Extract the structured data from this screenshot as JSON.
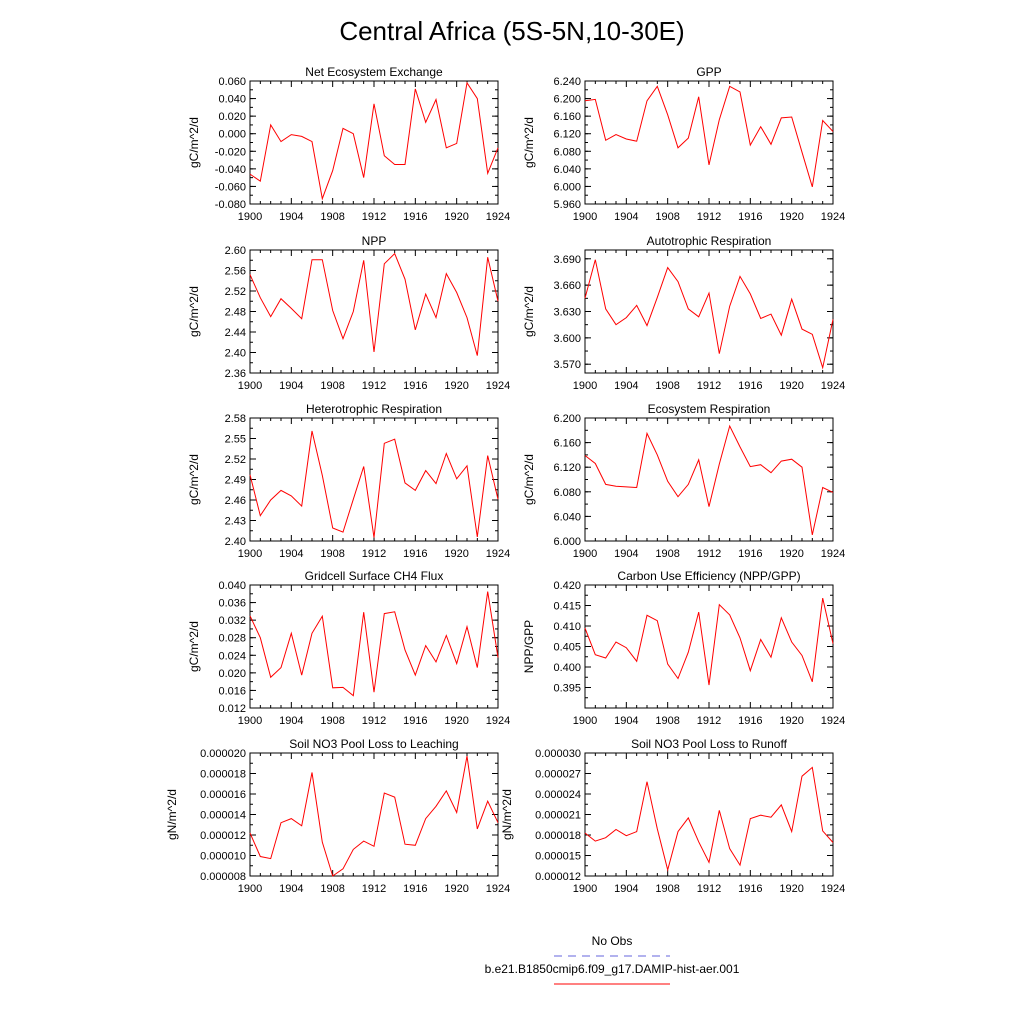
{
  "figure": {
    "title": "Central Africa (5S-5N,10-30E)"
  },
  "legend": [
    {
      "label": "No Obs",
      "color": "#6666dd",
      "style": "dashed"
    },
    {
      "label": "b.e21.B1850cmip6.f09_g17.DAMIP-hist-aer.001",
      "color": "#ff0000",
      "style": "solid"
    }
  ],
  "chart_data": [
    {
      "type": "line",
      "title": "Net Ecosystem Exchange",
      "ylabel": "gC/m^2/d",
      "xlim": [
        1900,
        1924
      ],
      "ylim": [
        -0.08,
        0.06
      ],
      "xticks": [
        "1900",
        "1904",
        "1908",
        "1912",
        "1916",
        "1920",
        "1924"
      ],
      "yticks": [
        "-0.080",
        "-0.060",
        "-0.040",
        "-0.020",
        "0.000",
        "0.020",
        "0.040",
        "0.060"
      ],
      "series": [
        {
          "color": "#ff0000",
          "x": [
            1900,
            1901,
            1902,
            1903,
            1904,
            1905,
            1906,
            1907,
            1908,
            1909,
            1910,
            1911,
            1912,
            1913,
            1914,
            1915,
            1916,
            1917,
            1918,
            1919,
            1920,
            1921,
            1922,
            1923,
            1924
          ],
          "values": [
            -0.046,
            -0.054,
            0.01,
            -0.009,
            -0.001,
            -0.003,
            -0.009,
            -0.074,
            -0.042,
            0.006,
            0.0,
            -0.05,
            0.034,
            -0.025,
            -0.035,
            -0.035,
            0.051,
            0.013,
            0.039,
            -0.016,
            -0.011,
            0.058,
            0.04,
            -0.045,
            -0.016
          ]
        }
      ]
    },
    {
      "type": "line",
      "title": "GPP",
      "ylabel": "gC/m^2/d",
      "xlim": [
        1900,
        1924
      ],
      "ylim": [
        5.96,
        6.24
      ],
      "xticks": [
        "1900",
        "1904",
        "1908",
        "1912",
        "1916",
        "1920",
        "1924"
      ],
      "yticks": [
        "5.960",
        "6.000",
        "6.040",
        "6.080",
        "6.120",
        "6.160",
        "6.200",
        "6.240"
      ],
      "series": [
        {
          "color": "#ff0000",
          "x": [
            1900,
            1901,
            1902,
            1903,
            1904,
            1905,
            1906,
            1907,
            1908,
            1909,
            1910,
            1911,
            1912,
            1913,
            1914,
            1915,
            1916,
            1917,
            1918,
            1919,
            1920,
            1921,
            1922,
            1923,
            1924
          ],
          "values": [
            6.195,
            6.198,
            6.105,
            6.118,
            6.108,
            6.103,
            6.195,
            6.228,
            6.163,
            6.088,
            6.11,
            6.204,
            6.049,
            6.152,
            6.228,
            6.215,
            6.094,
            6.136,
            6.096,
            6.156,
            6.158,
            6.078,
            5.999,
            6.15,
            6.125
          ]
        }
      ]
    },
    {
      "type": "line",
      "title": "NPP",
      "ylabel": "gC/m^2/d",
      "xlim": [
        1900,
        1924
      ],
      "ylim": [
        2.36,
        2.6
      ],
      "xticks": [
        "1900",
        "1904",
        "1908",
        "1912",
        "1916",
        "1920",
        "1924"
      ],
      "yticks": [
        "2.36",
        "2.40",
        "2.44",
        "2.48",
        "2.52",
        "2.56",
        "2.60"
      ],
      "series": [
        {
          "color": "#ff0000",
          "x": [
            1900,
            1901,
            1902,
            1903,
            1904,
            1905,
            1906,
            1907,
            1908,
            1909,
            1910,
            1911,
            1912,
            1913,
            1914,
            1915,
            1916,
            1917,
            1918,
            1919,
            1920,
            1921,
            1922,
            1923,
            1924
          ],
          "values": [
            2.552,
            2.507,
            2.47,
            2.505,
            2.486,
            2.466,
            2.581,
            2.581,
            2.482,
            2.427,
            2.48,
            2.58,
            2.401,
            2.573,
            2.593,
            2.543,
            2.444,
            2.514,
            2.468,
            2.554,
            2.517,
            2.468,
            2.394,
            2.586,
            2.5
          ]
        }
      ]
    },
    {
      "type": "line",
      "title": "Autotrophic Respiration",
      "ylabel": "gC/m^2/d",
      "xlim": [
        1900,
        1924
      ],
      "ylim": [
        3.56,
        3.7
      ],
      "xticks": [
        "1900",
        "1904",
        "1908",
        "1912",
        "1916",
        "1920",
        "1924"
      ],
      "yticks": [
        "3.570",
        "3.600",
        "3.630",
        "3.660",
        "3.690"
      ],
      "series": [
        {
          "color": "#ff0000",
          "x": [
            1900,
            1901,
            1902,
            1903,
            1904,
            1905,
            1906,
            1907,
            1908,
            1909,
            1910,
            1911,
            1912,
            1913,
            1914,
            1915,
            1916,
            1917,
            1918,
            1919,
            1920,
            1921,
            1922,
            1923,
            1924
          ],
          "values": [
            3.645,
            3.689,
            3.633,
            3.615,
            3.623,
            3.637,
            3.614,
            3.646,
            3.68,
            3.664,
            3.633,
            3.624,
            3.651,
            3.582,
            3.636,
            3.67,
            3.65,
            3.622,
            3.627,
            3.603,
            3.644,
            3.61,
            3.604,
            3.566,
            3.621
          ]
        }
      ]
    },
    {
      "type": "line",
      "title": "Heterotrophic Respiration",
      "ylabel": "gC/m^2/d",
      "xlim": [
        1900,
        1924
      ],
      "ylim": [
        2.4,
        2.58
      ],
      "xticks": [
        "1900",
        "1904",
        "1908",
        "1912",
        "1916",
        "1920",
        "1924"
      ],
      "yticks": [
        "2.40",
        "2.43",
        "2.46",
        "2.49",
        "2.52",
        "2.55",
        "2.58"
      ],
      "series": [
        {
          "color": "#ff0000",
          "x": [
            1900,
            1901,
            1902,
            1903,
            1904,
            1905,
            1906,
            1907,
            1908,
            1909,
            1910,
            1911,
            1912,
            1913,
            1914,
            1915,
            1916,
            1917,
            1918,
            1919,
            1920,
            1921,
            1922,
            1923,
            1924
          ],
          "values": [
            2.497,
            2.437,
            2.46,
            2.474,
            2.466,
            2.451,
            2.561,
            2.496,
            2.419,
            2.413,
            2.461,
            2.509,
            2.405,
            2.543,
            2.549,
            2.485,
            2.474,
            2.503,
            2.484,
            2.528,
            2.491,
            2.51,
            2.406,
            2.525,
            2.461
          ]
        }
      ]
    },
    {
      "type": "line",
      "title": "Ecosystem Respiration",
      "ylabel": "gC/m^2/d",
      "xlim": [
        1900,
        1924
      ],
      "ylim": [
        6.0,
        6.2
      ],
      "xticks": [
        "1900",
        "1904",
        "1908",
        "1912",
        "1916",
        "1920",
        "1924"
      ],
      "yticks": [
        "6.000",
        "6.040",
        "6.080",
        "6.120",
        "6.160",
        "6.200"
      ],
      "series": [
        {
          "color": "#ff0000",
          "x": [
            1900,
            1901,
            1902,
            1903,
            1904,
            1905,
            1906,
            1907,
            1908,
            1909,
            1910,
            1911,
            1912,
            1913,
            1914,
            1915,
            1916,
            1917,
            1918,
            1919,
            1920,
            1921,
            1922,
            1923,
            1924
          ],
          "values": [
            6.139,
            6.126,
            6.092,
            6.089,
            6.088,
            6.087,
            6.175,
            6.14,
            6.097,
            6.072,
            6.092,
            6.132,
            6.056,
            6.125,
            6.187,
            6.153,
            6.121,
            6.124,
            6.111,
            6.13,
            6.133,
            6.12,
            6.01,
            6.087,
            6.079
          ]
        }
      ]
    },
    {
      "type": "line",
      "title": "Gridcell Surface CH4 Flux",
      "ylabel": "gC/m^2/d",
      "xlim": [
        1900,
        1924
      ],
      "ylim": [
        0.012,
        0.04
      ],
      "xticks": [
        "1900",
        "1904",
        "1908",
        "1912",
        "1916",
        "1920",
        "1924"
      ],
      "yticks": [
        "0.012",
        "0.016",
        "0.020",
        "0.024",
        "0.028",
        "0.032",
        "0.036",
        "0.040"
      ],
      "series": [
        {
          "color": "#ff0000",
          "x": [
            1900,
            1901,
            1902,
            1903,
            1904,
            1905,
            1906,
            1907,
            1908,
            1909,
            1910,
            1911,
            1912,
            1913,
            1914,
            1915,
            1916,
            1917,
            1918,
            1919,
            1920,
            1921,
            1922,
            1923,
            1924
          ],
          "values": [
            0.033,
            0.028,
            0.019,
            0.0212,
            0.029,
            0.0195,
            0.029,
            0.0329,
            0.0166,
            0.0167,
            0.0148,
            0.0338,
            0.0156,
            0.0335,
            0.0339,
            0.0252,
            0.0195,
            0.0262,
            0.0225,
            0.0285,
            0.0221,
            0.0305,
            0.0212,
            0.0385,
            0.0235
          ]
        }
      ]
    },
    {
      "type": "line",
      "title": "Carbon Use Efficiency (NPP/GPP)",
      "ylabel": "NPP/GPP",
      "xlim": [
        1900,
        1924
      ],
      "ylim": [
        0.39,
        0.42
      ],
      "xticks": [
        "1900",
        "1904",
        "1908",
        "1912",
        "1916",
        "1920",
        "1924"
      ],
      "yticks": [
        "0.395",
        "0.400",
        "0.405",
        "0.410",
        "0.415",
        "0.420"
      ],
      "series": [
        {
          "color": "#ff0000",
          "x": [
            1900,
            1901,
            1902,
            1903,
            1904,
            1905,
            1906,
            1907,
            1908,
            1909,
            1910,
            1911,
            1912,
            1913,
            1914,
            1915,
            1916,
            1917,
            1918,
            1919,
            1920,
            1921,
            1922,
            1923,
            1924
          ],
          "values": [
            0.4095,
            0.403,
            0.4022,
            0.4061,
            0.4047,
            0.4014,
            0.4126,
            0.4113,
            0.4007,
            0.3972,
            0.4036,
            0.4134,
            0.3956,
            0.4152,
            0.4127,
            0.4071,
            0.3991,
            0.4067,
            0.4024,
            0.412,
            0.4061,
            0.4028,
            0.3964,
            0.4168,
            0.4057
          ]
        }
      ]
    },
    {
      "type": "line",
      "title": "Soil NO3 Pool Loss to Leaching",
      "ylabel": "gN/m^2/d",
      "xlim": [
        1900,
        1924
      ],
      "ylim": [
        8e-06,
        2e-05
      ],
      "xticks": [
        "1900",
        "1904",
        "1908",
        "1912",
        "1916",
        "1920",
        "1924"
      ],
      "yticks": [
        "0.000008",
        "0.000010",
        "0.000012",
        "0.000014",
        "0.000016",
        "0.000018",
        "0.000020"
      ],
      "series": [
        {
          "color": "#ff0000",
          "x": [
            1900,
            1901,
            1902,
            1903,
            1904,
            1905,
            1906,
            1907,
            1908,
            1909,
            1910,
            1911,
            1912,
            1913,
            1914,
            1915,
            1916,
            1917,
            1918,
            1919,
            1920,
            1921,
            1922,
            1923,
            1924
          ],
          "values": [
            1.22e-05,
            9.9e-06,
            9.7e-06,
            1.32e-05,
            1.36e-05,
            1.29e-05,
            1.81e-05,
            1.13e-05,
            8e-06,
            8.7e-06,
            1.06e-05,
            1.14e-05,
            1.09e-05,
            1.61e-05,
            1.57e-05,
            1.11e-05,
            1.1e-05,
            1.36e-05,
            1.48e-05,
            1.63e-05,
            1.42e-05,
            1.97e-05,
            1.26e-05,
            1.53e-05,
            1.32e-05
          ]
        }
      ]
    },
    {
      "type": "line",
      "title": "Soil NO3 Pool Loss to Runoff",
      "ylabel": "gN/m^2/d",
      "xlim": [
        1900,
        1924
      ],
      "ylim": [
        1.2e-05,
        3e-05
      ],
      "xticks": [
        "1900",
        "1904",
        "1908",
        "1912",
        "1916",
        "1920",
        "1924"
      ],
      "yticks": [
        "0.000012",
        "0.000015",
        "0.000018",
        "0.000021",
        "0.000024",
        "0.000027",
        "0.000030"
      ],
      "series": [
        {
          "color": "#ff0000",
          "x": [
            1900,
            1901,
            1902,
            1903,
            1904,
            1905,
            1906,
            1907,
            1908,
            1909,
            1910,
            1911,
            1912,
            1913,
            1914,
            1915,
            1916,
            1917,
            1918,
            1919,
            1920,
            1921,
            1922,
            1923,
            1924
          ],
          "values": [
            1.83e-05,
            1.71e-05,
            1.76e-05,
            1.88e-05,
            1.79e-05,
            1.85e-05,
            2.58e-05,
            1.89e-05,
            1.29e-05,
            1.85e-05,
            2.05e-05,
            1.7e-05,
            1.4e-05,
            2.16e-05,
            1.6e-05,
            1.36e-05,
            2.04e-05,
            2.09e-05,
            2.06e-05,
            2.24e-05,
            1.85e-05,
            2.66e-05,
            2.79e-05,
            1.86e-05,
            1.69e-05
          ]
        }
      ]
    }
  ]
}
